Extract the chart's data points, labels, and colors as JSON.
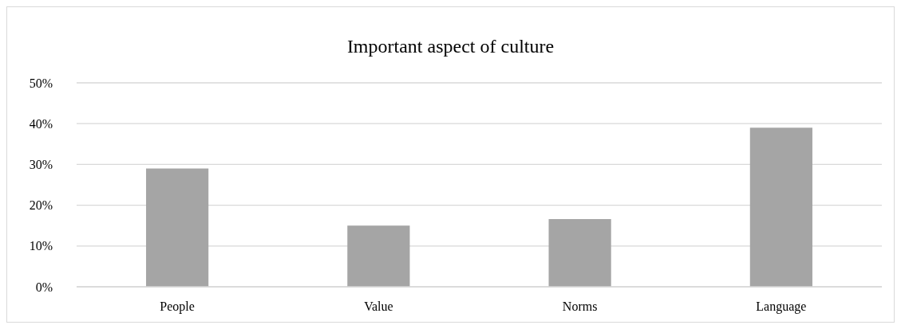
{
  "chart_data": {
    "type": "bar",
    "title": "Important aspect of culture",
    "categories": [
      "People",
      "Value",
      "Norms",
      "Language"
    ],
    "values": [
      29,
      15,
      16.6,
      39
    ],
    "color": "#a5a5a5",
    "ylim": [
      0,
      50
    ],
    "yticks": [
      {
        "value": 0,
        "label": "0%"
      },
      {
        "value": 10,
        "label": "10%"
      },
      {
        "value": 20,
        "label": "20%"
      },
      {
        "value": 30,
        "label": "30%"
      },
      {
        "value": 40,
        "label": "40%"
      },
      {
        "value": 50,
        "label": "50%"
      }
    ],
    "grid": "y"
  }
}
